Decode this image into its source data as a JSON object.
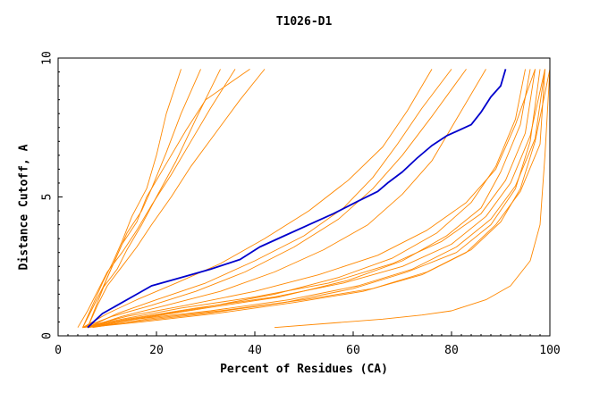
{
  "chart_data": {
    "type": "line",
    "title": "T1026-D1",
    "xlabel": "Percent of Residues (CA)",
    "ylabel": "Distance Cutoff, A",
    "xlim": [
      0,
      100
    ],
    "ylim": [
      0,
      10
    ],
    "x_ticks": [
      "0",
      "20",
      "40",
      "60",
      "80",
      "100"
    ],
    "y_ticks": [
      "0",
      "5",
      "10"
    ],
    "grid": false,
    "colors": {
      "highlight": "#0000cc",
      "others": "#ff8800"
    },
    "highlight_series": {
      "x": [
        6,
        9,
        12,
        16,
        19,
        25,
        31,
        37,
        41,
        46,
        51,
        56,
        61,
        65,
        67,
        70,
        73,
        76,
        79,
        84,
        86,
        88,
        90,
        91
      ],
      "y": [
        0.3,
        0.8,
        1.1,
        1.5,
        1.8,
        2.1,
        2.4,
        2.75,
        3.2,
        3.6,
        4.0,
        4.4,
        4.85,
        5.2,
        5.5,
        5.9,
        6.4,
        6.85,
        7.2,
        7.6,
        8.05,
        8.6,
        9.0,
        9.6
      ]
    },
    "fast_series": [
      {
        "x": [
          5,
          7,
          9,
          11,
          13,
          15,
          18,
          20,
          22,
          25
        ],
        "y": [
          0.3,
          1.1,
          1.9,
          2.6,
          3.4,
          4.3,
          5.3,
          6.5,
          8.0,
          9.6
        ]
      },
      {
        "x": [
          6,
          8,
          10,
          12,
          14,
          17,
          19,
          22,
          25,
          29
        ],
        "y": [
          0.3,
          1.2,
          2.1,
          2.9,
          3.7,
          4.5,
          5.3,
          6.6,
          8.0,
          9.6
        ]
      },
      {
        "x": [
          5,
          7,
          9,
          12,
          14,
          17,
          20,
          24,
          28,
          33
        ],
        "y": [
          0.3,
          1.0,
          1.7,
          2.4,
          3.1,
          4.0,
          5.0,
          6.3,
          7.8,
          9.6
        ]
      },
      {
        "x": [
          4,
          6,
          8,
          10,
          13,
          16,
          19,
          23,
          27,
          31,
          36
        ],
        "y": [
          0.3,
          0.9,
          1.6,
          2.3,
          3.0,
          3.8,
          4.7,
          5.8,
          7.0,
          8.2,
          9.6
        ]
      },
      {
        "x": [
          5,
          7,
          9,
          11,
          13,
          16,
          18,
          22,
          26,
          30,
          39
        ],
        "y": [
          0.3,
          1.0,
          1.7,
          2.5,
          3.3,
          4.1,
          5.0,
          6.2,
          7.4,
          8.5,
          9.6
        ]
      },
      {
        "x": [
          6,
          8,
          10,
          13,
          16,
          19,
          23,
          27,
          32,
          37,
          42
        ],
        "y": [
          0.3,
          1.1,
          1.8,
          2.5,
          3.2,
          4.0,
          5.0,
          6.1,
          7.3,
          8.5,
          9.6
        ]
      }
    ],
    "mid_series": [
      {
        "x": [
          5,
          10,
          16,
          24,
          33,
          42,
          51,
          59,
          66,
          71,
          76
        ],
        "y": [
          0.3,
          0.8,
          1.3,
          1.9,
          2.6,
          3.5,
          4.5,
          5.6,
          6.8,
          8.1,
          9.6
        ]
      },
      {
        "x": [
          6,
          12,
          20,
          30,
          40,
          50,
          58,
          64,
          69,
          74,
          80
        ],
        "y": [
          0.3,
          0.8,
          1.3,
          1.9,
          2.7,
          3.6,
          4.6,
          5.7,
          6.9,
          8.2,
          9.6
        ]
      },
      {
        "x": [
          5,
          11,
          19,
          28,
          38,
          48,
          57,
          64,
          70,
          76,
          83
        ],
        "y": [
          0.3,
          0.7,
          1.1,
          1.6,
          2.3,
          3.2,
          4.2,
          5.3,
          6.5,
          7.9,
          9.6
        ]
      },
      {
        "x": [
          6,
          13,
          22,
          33,
          44,
          54,
          63,
          70,
          76,
          81,
          87
        ],
        "y": [
          0.3,
          0.7,
          1.1,
          1.6,
          2.3,
          3.1,
          4.0,
          5.1,
          6.3,
          7.8,
          9.6
        ]
      }
    ],
    "slow_series": [
      {
        "x": [
          5,
          14,
          28,
          44,
          58,
          70,
          80,
          87,
          92,
          96,
          99
        ],
        "y": [
          0.3,
          0.6,
          1.0,
          1.4,
          1.9,
          2.5,
          3.3,
          4.3,
          5.5,
          7.2,
          9.6
        ]
      },
      {
        "x": [
          6,
          16,
          31,
          47,
          61,
          72,
          81,
          88,
          93,
          97,
          99
        ],
        "y": [
          0.3,
          0.6,
          0.9,
          1.3,
          1.8,
          2.4,
          3.2,
          4.2,
          5.4,
          7.1,
          9.6
        ]
      },
      {
        "x": [
          5,
          15,
          30,
          46,
          60,
          71,
          81,
          88,
          93,
          96,
          98
        ],
        "y": [
          0.3,
          0.5,
          0.8,
          1.2,
          1.7,
          2.3,
          3.0,
          4.0,
          5.3,
          7.0,
          9.6
        ]
      },
      {
        "x": [
          7,
          18,
          33,
          50,
          64,
          75,
          84,
          90,
          94,
          97,
          100
        ],
        "y": [
          0.3,
          0.6,
          0.9,
          1.3,
          1.7,
          2.3,
          3.1,
          4.1,
          5.3,
          7.0,
          9.6
        ]
      },
      {
        "x": [
          5,
          13,
          25,
          40,
          55,
          68,
          78,
          86,
          91,
          95,
          97
        ],
        "y": [
          0.3,
          0.6,
          1.0,
          1.4,
          1.9,
          2.6,
          3.4,
          4.4,
          5.6,
          7.3,
          9.6
        ]
      },
      {
        "x": [
          6,
          17,
          32,
          48,
          62,
          74,
          83,
          89,
          94,
          98,
          99
        ],
        "y": [
          0.3,
          0.5,
          0.8,
          1.2,
          1.6,
          2.2,
          3.0,
          4.0,
          5.2,
          6.9,
          9.6
        ]
      },
      {
        "x": [
          5,
          16,
          30,
          45,
          59,
          70,
          79,
          86,
          90,
          94,
          96
        ],
        "y": [
          0.3,
          0.6,
          1.0,
          1.4,
          2.0,
          2.7,
          3.6,
          4.6,
          5.9,
          7.6,
          9.6
        ]
      },
      {
        "x": [
          6,
          15,
          29,
          44,
          57,
          68,
          77,
          84,
          89,
          93,
          95
        ],
        "y": [
          0.3,
          0.6,
          1.0,
          1.5,
          2.1,
          2.8,
          3.7,
          4.8,
          6.1,
          7.8,
          9.6
        ]
      },
      {
        "x": [
          5,
          14,
          26,
          40,
          53,
          65,
          75,
          83,
          89,
          93,
          97
        ],
        "y": [
          0.3,
          0.7,
          1.1,
          1.6,
          2.2,
          2.9,
          3.8,
          4.8,
          6.0,
          7.6,
          9.6
        ]
      }
    ],
    "outlier_series": {
      "x": [
        44,
        55,
        66,
        74,
        80,
        87,
        92,
        96,
        98,
        99,
        100
      ],
      "y": [
        0.3,
        0.45,
        0.6,
        0.75,
        0.9,
        1.3,
        1.8,
        2.7,
        4.0,
        6.5,
        9.6
      ]
    }
  }
}
